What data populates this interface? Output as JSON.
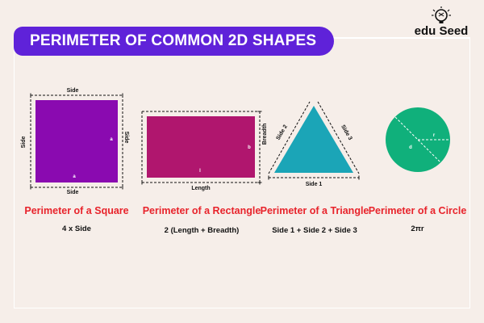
{
  "title": "PERIMETER OF COMMON 2D SHAPES",
  "brand": {
    "name": "edu Seed",
    "icon": "lightbulb-icon"
  },
  "colors": {
    "title_bg": "#5f22d9",
    "square": "#8a0ab0",
    "rectangle": "#b0166e",
    "triangle": "#1ba5b7",
    "circle": "#10b07b",
    "label_red": "#e8232b",
    "background": "#f6eee9"
  },
  "shapes": [
    {
      "name": "Perimeter of a Square",
      "formula": "4 x Side",
      "dims": {
        "top": "Side",
        "bottom": "Side",
        "left": "Side",
        "right": "Side",
        "inner_right": "a",
        "inner_bottom": "a"
      }
    },
    {
      "name": "Perimeter of a Rectangle",
      "formula": "2 (Length + Breadth)",
      "dims": {
        "bottom": "Length",
        "right": "Breadth",
        "inner_right": "b",
        "inner_bottom": "l"
      }
    },
    {
      "name": "Perimeter of a Triangle",
      "formula": "Side 1 + Side 2 + Side 3",
      "dims": {
        "bottom": "Side 1",
        "left": "Side 2",
        "right": "Side 3"
      }
    },
    {
      "name": "Perimeter of a Circle",
      "formula": "2πr",
      "dims": {
        "radius": "r",
        "diameter": "d"
      }
    }
  ]
}
